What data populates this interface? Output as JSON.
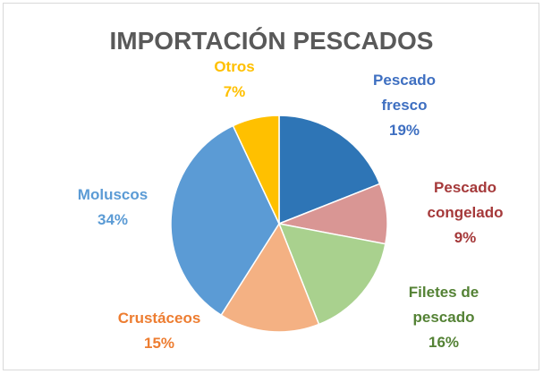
{
  "chart_data": {
    "type": "pie",
    "title": "IMPORTACIÓN PESCADOS",
    "categories": [
      "Pescado fresco",
      "Pescado congelado",
      "Filetes de pescado",
      "Crustáceos",
      "Moluscos",
      "Otros"
    ],
    "values": [
      19,
      9,
      16,
      15,
      34,
      7
    ],
    "value_labels": [
      "19%",
      "9%",
      "16%",
      "15%",
      "34%",
      "7%"
    ],
    "colors": [
      "#2e75b6",
      "#d99694",
      "#a9d18e",
      "#f4b183",
      "#5b9bd5",
      "#ffc000"
    ],
    "label_colors": [
      "#3e6fc1",
      "#a5393a",
      "#548235",
      "#ed7d31",
      "#5b9bd5",
      "#ffc000"
    ]
  }
}
